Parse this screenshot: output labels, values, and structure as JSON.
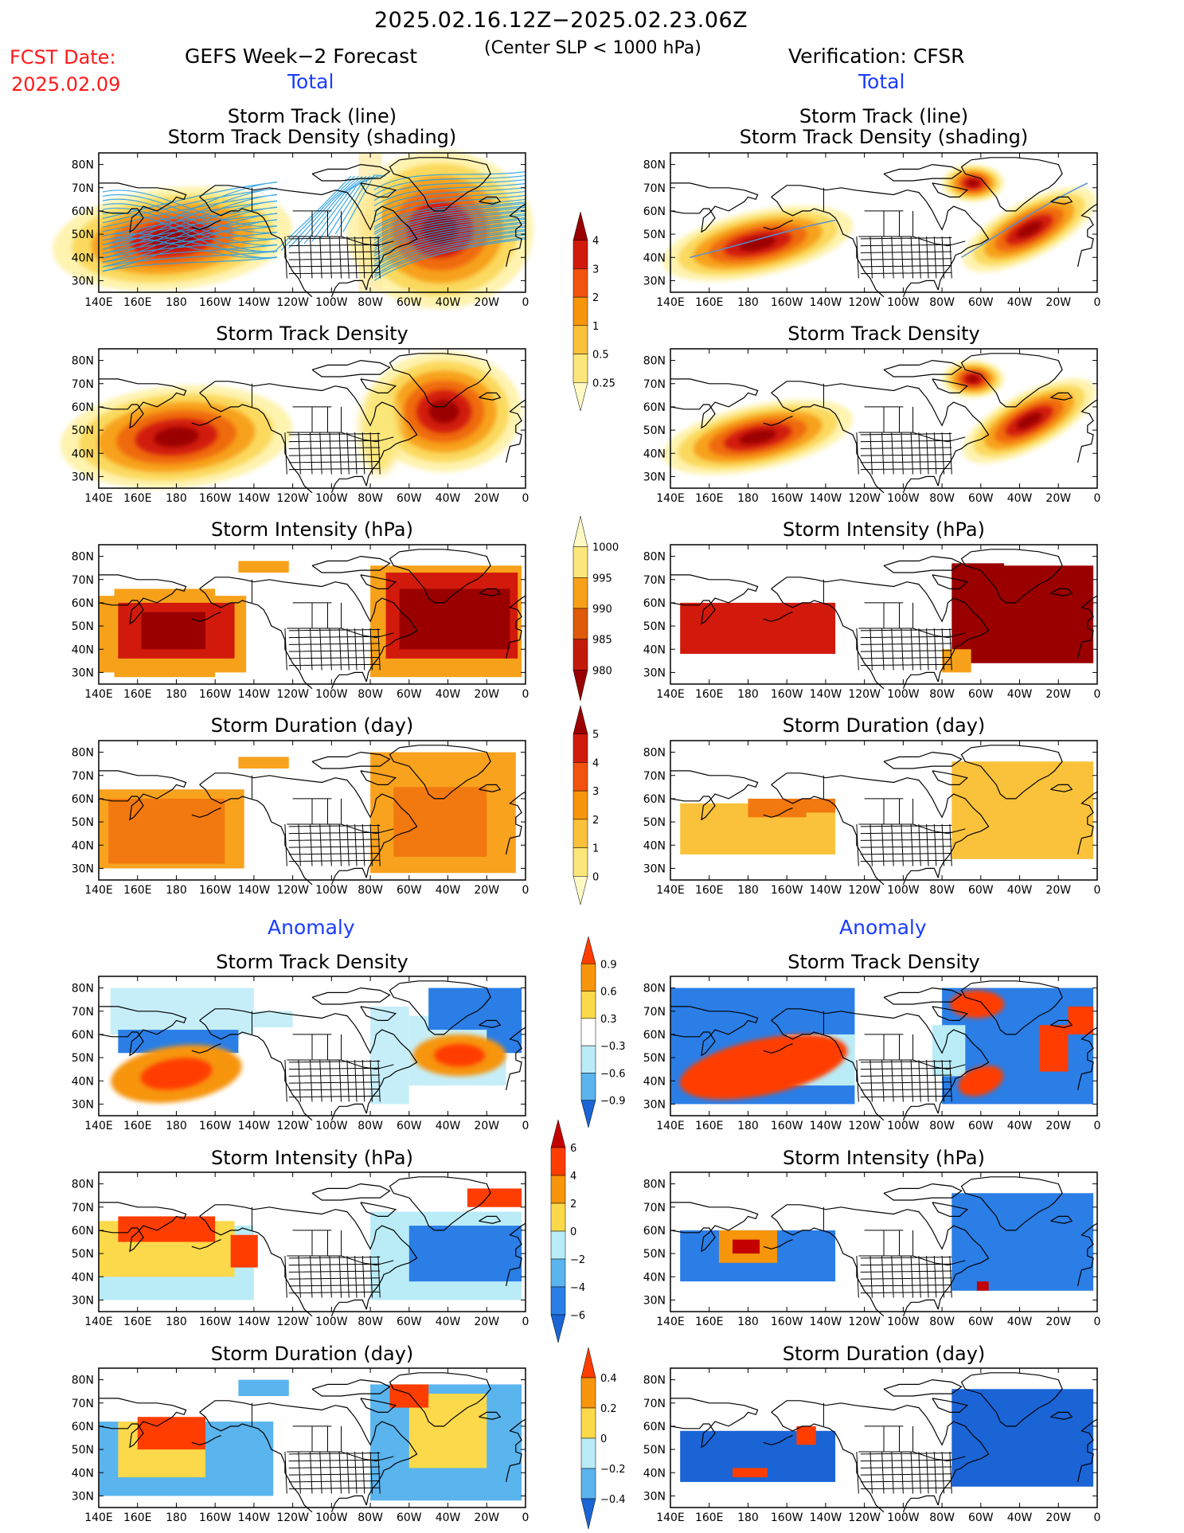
{
  "header": {
    "period": "2025.02.16.12Z−2025.02.23.06Z",
    "criterion": "(Center SLP < 1000 hPa)",
    "fcst_label": "FCST Date:",
    "fcst_date": "2025.02.09",
    "left_title": "GEFS Week−2 Forecast",
    "right_title": "Verification: CFSR"
  },
  "sections": {
    "total": "Total",
    "anomaly": "Anomaly"
  },
  "panel_titles": {
    "track_line": "Storm Track (line)",
    "track_shading": "Storm Track Density (shading)",
    "density": "Storm Track Density",
    "intensity": "Storm Intensity (hPa)",
    "duration": "Storm Duration (day)"
  },
  "axes": {
    "lon_labels": [
      "140E",
      "160E",
      "180",
      "160W",
      "140W",
      "120W",
      "100W",
      "80W",
      "60W",
      "40W",
      "20W",
      "0"
    ],
    "lat_labels": [
      "80N",
      "70N",
      "60N",
      "50N",
      "40N",
      "30N"
    ]
  },
  "colorbars": {
    "density_total": {
      "labels": [
        "4",
        "3",
        "2",
        "1",
        "0.5",
        "0.25"
      ],
      "colors": [
        "#9b0000",
        "#d11a0c",
        "#f2520d",
        "#f7950d",
        "#f9c23a",
        "#fbe67a",
        "#fff9c4"
      ]
    },
    "intensity_total": {
      "labels": [
        "1000",
        "995",
        "990",
        "985",
        "980"
      ],
      "colors": [
        "#fff9c4",
        "#fbe67a",
        "#f7a11a",
        "#e05a0c",
        "#c41a0c",
        "#9b0000"
      ]
    },
    "duration_total": {
      "labels": [
        "5",
        "4",
        "3",
        "2",
        "1",
        "0"
      ],
      "colors": [
        "#9b0000",
        "#d11a0c",
        "#f2520d",
        "#f7950d",
        "#f9c23a",
        "#fbe67a",
        "#fff9c4"
      ]
    },
    "density_anom": {
      "labels": [
        "0.9",
        "0.6",
        "0.3",
        "−0.3",
        "−0.6",
        "−0.9"
      ],
      "colors": [
        "#ff3d00",
        "#f7950d",
        "#fcd94a",
        "#ffffff",
        "#b9ecf7",
        "#5ab4ee",
        "#1a64d6"
      ]
    },
    "intensity_anom": {
      "labels": [
        "6",
        "4",
        "2",
        "0",
        "−2",
        "−4",
        "−6"
      ],
      "colors": [
        "#c40000",
        "#ff3d00",
        "#f7950d",
        "#fcd94a",
        "#b9ecf7",
        "#5ab4ee",
        "#2a7ee6",
        "#1a64d6"
      ]
    },
    "duration_anom": {
      "labels": [
        "0.4",
        "0.2",
        "0",
        "−0.2",
        "−0.4"
      ],
      "colors": [
        "#ff3d00",
        "#f7950d",
        "#fcd94a",
        "#b9ecf7",
        "#5ab4ee",
        "#1a64d6"
      ]
    }
  },
  "colors": {
    "forecast_track": "#2aa0e6",
    "verification_track": "#5a8fd0"
  }
}
